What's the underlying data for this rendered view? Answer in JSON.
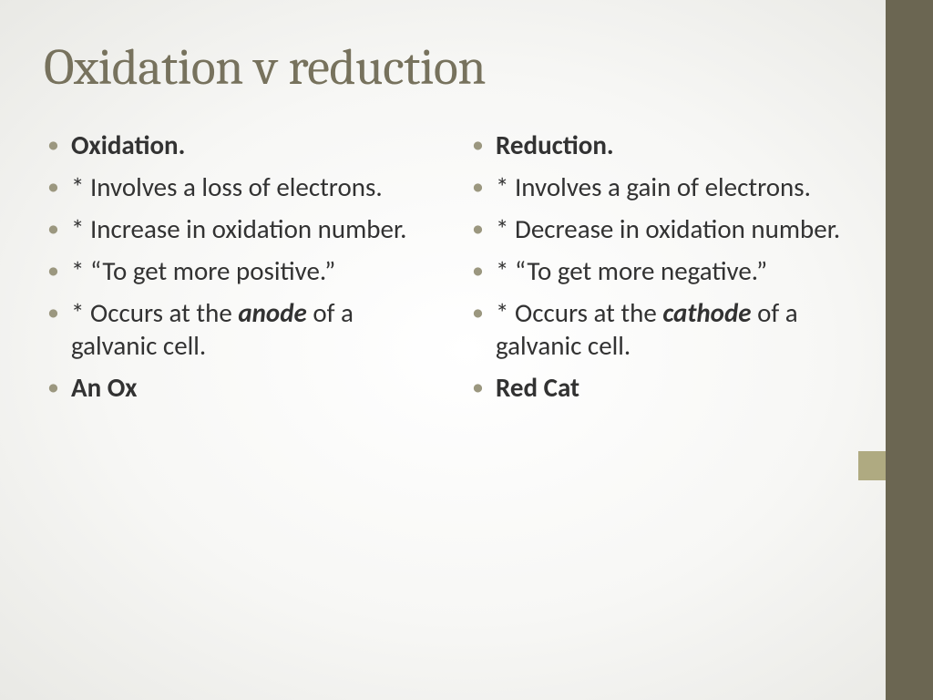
{
  "colors": {
    "title": "#77725d",
    "bullet": "#9b977f",
    "text": "#323232",
    "sidebar": "#6b6652",
    "notch": "#afaa81",
    "bg_inner": "#ffffff",
    "bg_outer": "#e9e9e5"
  },
  "typography": {
    "title_family": "Cambria",
    "body_family": "Calibri",
    "title_size_pt": 42,
    "body_size_pt": 22
  },
  "title": "Oxidation v reduction",
  "left": {
    "heading": "Oxidation.",
    "b1": "* Involves a loss of electrons.",
    "b2": " * Increase in oxidation number.",
    "b3": " * “To get more positive.”",
    "b4_pre": " * Occurs at the ",
    "b4_em": "anode",
    "b4_post": " of a galvanic cell.",
    "mnemonic": "An Ox"
  },
  "right": {
    "heading": "Reduction.",
    "b1": "* Involves a gain of electrons.",
    "b2": "* Decrease in oxidation number.",
    "b3": "* “To get more negative.”",
    "b4_pre": "* Occurs at the ",
    "b4_em": "cathode",
    "b4_post": " of a galvanic cell.",
    "mnemonic": "Red Cat"
  }
}
